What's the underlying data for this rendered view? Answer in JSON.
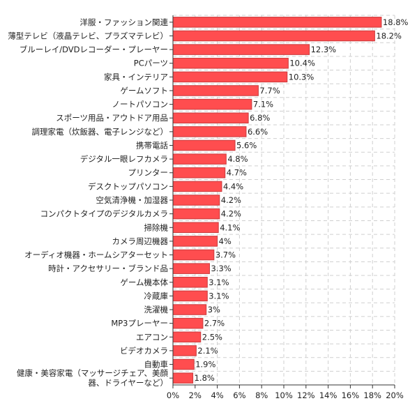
{
  "chart_data": {
    "type": "bar",
    "orientation": "horizontal",
    "categories": [
      "洋服・ファッション関連",
      "薄型テレビ（液晶テレビ、プラズマテレビ）",
      "ブルーレイ/DVDレコーダー・プレーヤー",
      "PCパーツ",
      "家具・インテリア",
      "ゲームソフト",
      "ノートパソコン",
      "スポーツ用品・アウトドア用品",
      "調理家電（炊飯器、電子レンジなど）",
      "携帯電話",
      "デジタル一眼レフカメラ",
      "プリンター",
      "デスクトップパソコン",
      "空気清浄機・加湿器",
      "コンパクトタイプのデジタルカメラ",
      "掃除機",
      "カメラ周辺機器",
      "オーディオ機器・ホームシアターセット",
      "時計・アクセサリー・ブランド品",
      "ゲーム機本体",
      "冷蔵庫",
      "洗濯機",
      "MP3プレーヤー",
      "エアコン",
      "ビデオカメラ",
      "自動車",
      "健康・美容家電（マッサージチェア、美顔器、ドライヤーなど）"
    ],
    "category_label_lines": {
      "26": [
        "健康・美容家電（マッサージチェア、美顔",
        "器、ドライヤーなど）"
      ]
    },
    "values": [
      18.8,
      18.2,
      12.3,
      10.4,
      10.3,
      7.7,
      7.1,
      6.8,
      6.6,
      5.6,
      4.8,
      4.7,
      4.4,
      4.2,
      4.2,
      4.1,
      4,
      3.7,
      3.3,
      3.1,
      3.1,
      3,
      2.7,
      2.5,
      2.1,
      1.9,
      1.8
    ],
    "value_labels": [
      "18.8%",
      "18.2%",
      "12.3%",
      "10.4%",
      "10.3%",
      "7.7%",
      "7.1%",
      "6.8%",
      "6.6%",
      "5.6%",
      "4.8%",
      "4.7%",
      "4.4%",
      "4.2%",
      "4.2%",
      "4.1%",
      "4%",
      "3.7%",
      "3.3%",
      "3.1%",
      "3.1%",
      "3%",
      "2.7%",
      "2.5%",
      "2.1%",
      "1.9%",
      "1.8%"
    ],
    "xlim": [
      0,
      20
    ],
    "x_ticks": [
      0,
      2,
      4,
      6,
      8,
      10,
      12,
      14,
      16,
      18,
      20
    ],
    "x_tick_labels": [
      "0%",
      "2%",
      "4%",
      "6%",
      "8%",
      "10%",
      "12%",
      "14%",
      "16%",
      "18%",
      "20%"
    ],
    "grid": true,
    "title": "",
    "xlabel": "",
    "ylabel": "",
    "colors": {
      "bar_fill": "#ff4d4f",
      "bar_edge": "#c93a3c",
      "grid": "#cfcfcf",
      "axis": "#333333"
    }
  }
}
